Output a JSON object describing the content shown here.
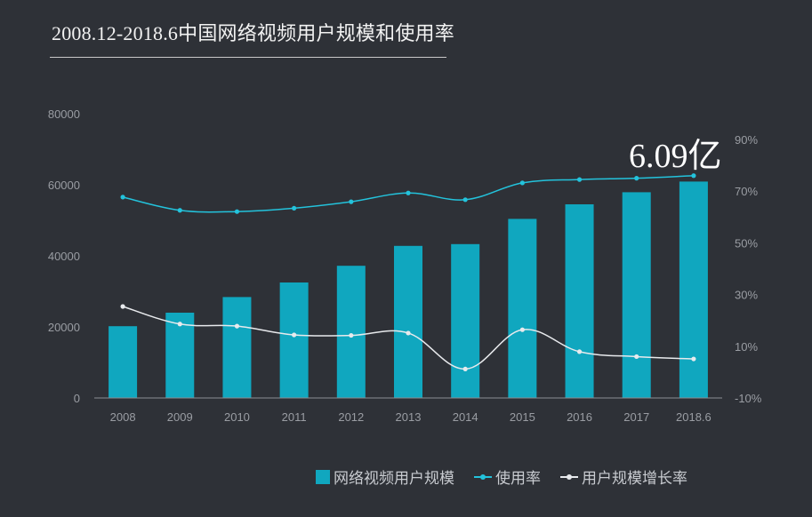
{
  "title": "2008.12-2018.6中国网络视频用户规模和使用率",
  "callout": "6.09亿",
  "legend": {
    "bar_label": "网络视频用户规模",
    "usage_label": "使用率",
    "growth_label": "用户规模增长率"
  },
  "colors": {
    "background": "#2e3137",
    "bar": "#10a7bf",
    "usage_line": "#23c3dc",
    "growth_line": "#e8eaed",
    "axis_text": "#9a9da3"
  },
  "chart_data": {
    "type": "bar",
    "categories": [
      "2008",
      "2009",
      "2010",
      "2011",
      "2012",
      "2013",
      "2014",
      "2015",
      "2016",
      "2017",
      "2018.6"
    ],
    "y_left": {
      "ticks": [
        "0",
        "20000",
        "40000",
        "60000",
        "80000"
      ],
      "range": [
        0,
        80000
      ]
    },
    "y_right": {
      "ticks": [
        "-10%",
        "10%",
        "30%",
        "50%",
        "70%",
        "90%"
      ],
      "range": [
        -10,
        90
      ]
    },
    "series": [
      {
        "name": "网络视频用户规模",
        "type": "bar",
        "axis": "left",
        "values": [
          20200,
          24000,
          28400,
          32500,
          37200,
          42800,
          43300,
          50400,
          54500,
          57900,
          60900
        ]
      },
      {
        "name": "使用率",
        "type": "line",
        "axis": "right",
        "values": [
          67.7,
          62.6,
          62.1,
          63.4,
          65.9,
          69.3,
          66.7,
          73.2,
          74.5,
          75.0,
          76.0
        ]
      },
      {
        "name": "用户规模增长率",
        "type": "line",
        "axis": "right",
        "values": [
          25.4,
          18.6,
          17.8,
          14.4,
          14.2,
          15.1,
          1.2,
          16.4,
          7.9,
          6.0,
          5.1
        ]
      }
    ],
    "grid": false,
    "legend_position": "bottom-right"
  }
}
